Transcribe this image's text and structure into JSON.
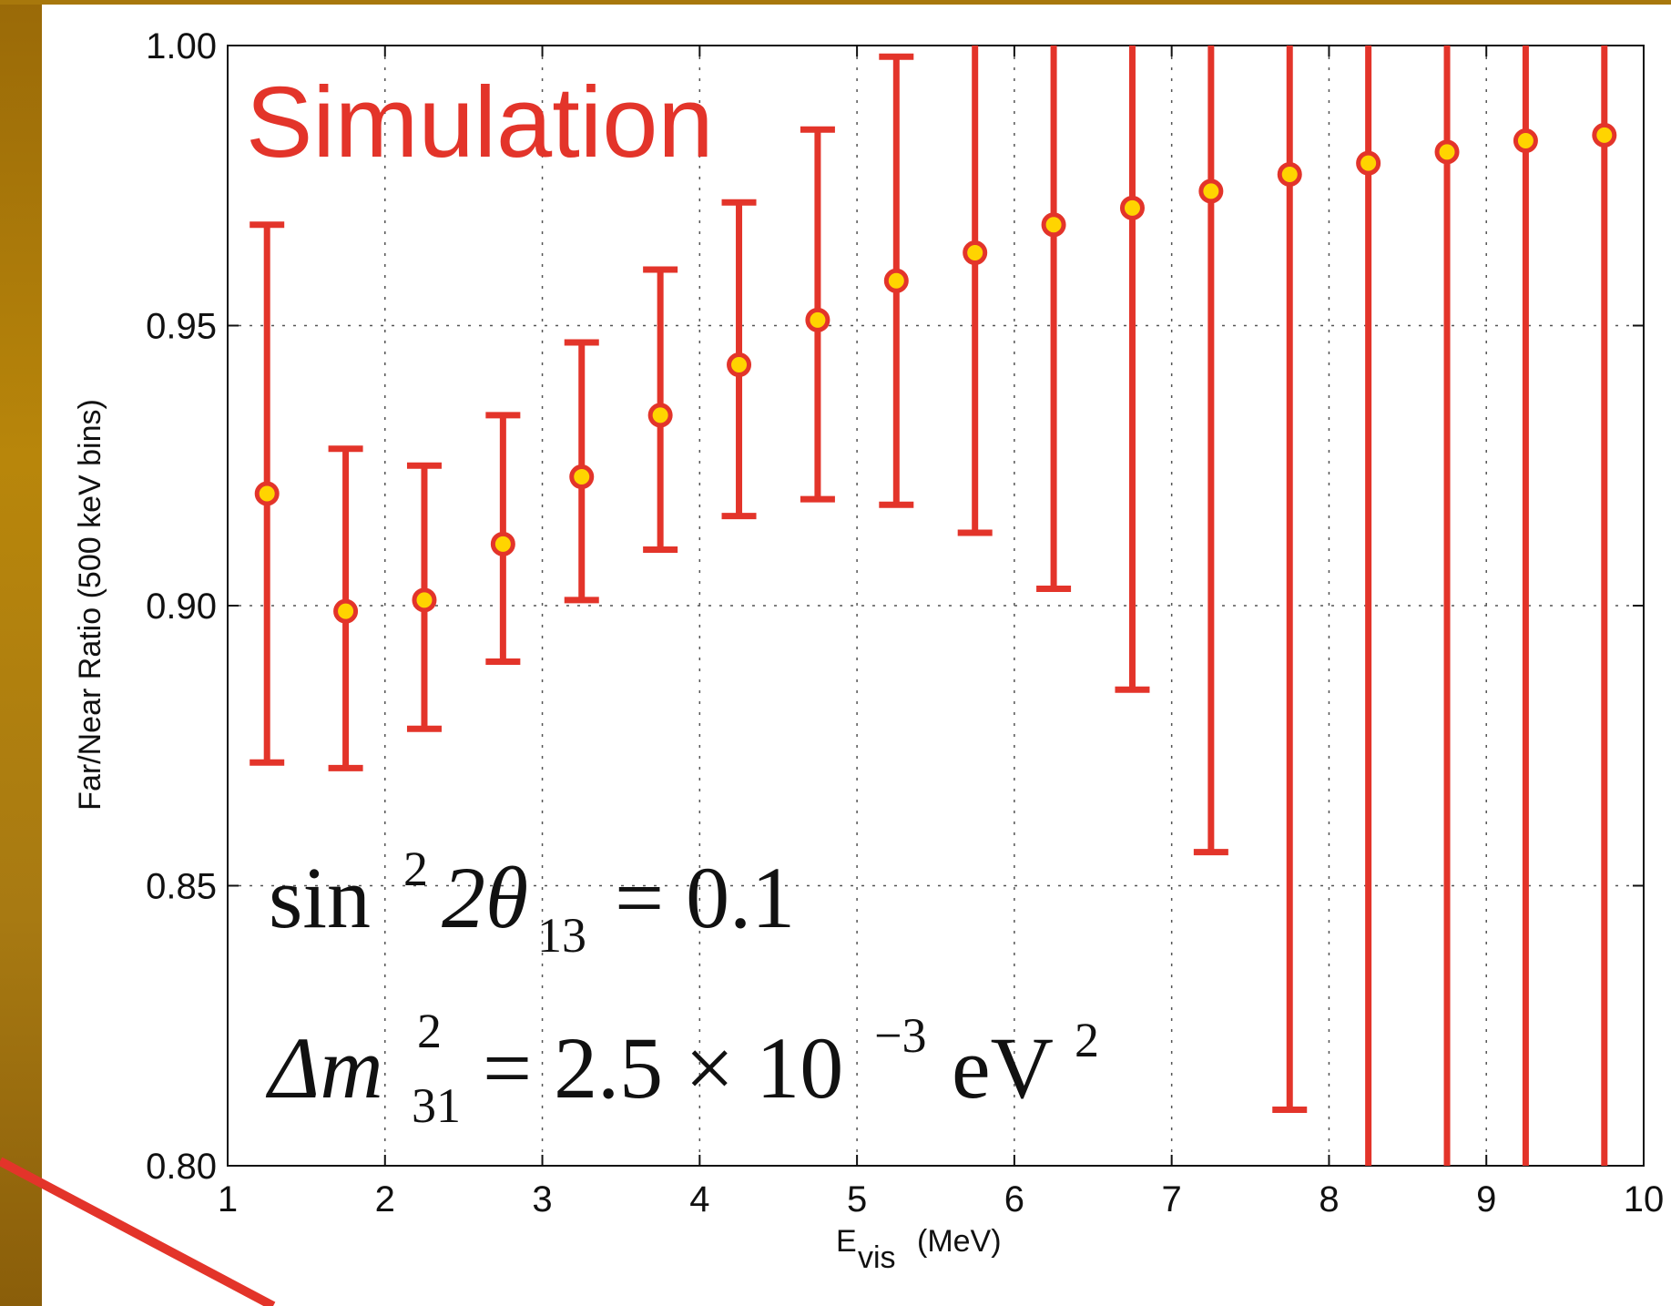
{
  "chart_data": {
    "type": "scatter",
    "annotation": "Simulation",
    "xlabel": "E",
    "xlabel_sub": "vis",
    "xlabel_unit": "(MeV)",
    "ylabel": "Far/Near Ratio (500 keV bins)",
    "xlim": [
      1,
      10
    ],
    "ylim": [
      0.8,
      1.0
    ],
    "x_ticks": [
      "1",
      "2",
      "3",
      "4",
      "5",
      "6",
      "7",
      "8",
      "9",
      "10"
    ],
    "y_ticks": [
      "0.80",
      "0.85",
      "0.90",
      "0.95",
      "1.00"
    ],
    "grid": true,
    "formula1": {
      "base": "sin",
      "sup": "2",
      "mid": "2θ",
      "sub": "13",
      "rhs": "= 0.1"
    },
    "formula2": {
      "base": "Δm",
      "sup": "2",
      "sub": "31",
      "rhs": "= 2.5 × 10",
      "exp": "−3",
      "unit": "eV",
      "unit_sup": "2"
    },
    "x": [
      1.25,
      1.75,
      2.25,
      2.75,
      3.25,
      3.75,
      4.25,
      4.75,
      5.25,
      5.75,
      6.25,
      6.75,
      7.25,
      7.75,
      8.25,
      8.75,
      9.25,
      9.75
    ],
    "values": [
      0.92,
      0.899,
      0.901,
      0.911,
      0.923,
      0.934,
      0.943,
      0.951,
      0.958,
      0.963,
      0.968,
      0.971,
      0.974,
      0.977,
      0.979,
      0.981,
      0.983,
      0.984
    ],
    "err_low": [
      0.872,
      0.871,
      0.878,
      0.89,
      0.901,
      0.91,
      0.916,
      0.919,
      0.918,
      0.913,
      0.903,
      0.885,
      0.856,
      0.81,
      0.8,
      0.8,
      0.8,
      0.8
    ],
    "err_high": [
      0.968,
      0.928,
      0.925,
      0.934,
      0.947,
      0.96,
      0.972,
      0.985,
      0.998,
      1.0,
      1.0,
      1.0,
      1.0,
      1.0,
      1.0,
      1.0,
      1.0,
      1.0
    ],
    "colors": {
      "error_bar": "#e3342a",
      "marker_fill": "#ffd400",
      "marker_edge": "#e3342a",
      "grid": "#555555"
    }
  }
}
